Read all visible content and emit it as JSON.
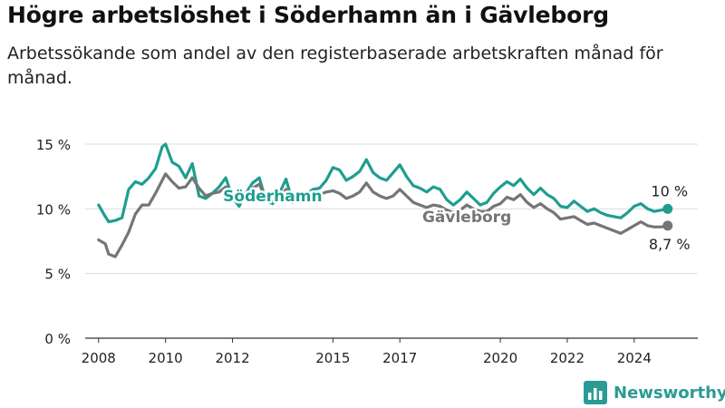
{
  "title": "Högre arbetslöshet i Söderhamn än i Gävleborg",
  "subtitle": "Arbetssökande som andel av den registerbaserade arbetskraften månad för månad.",
  "brand": {
    "name": "Newsworthy",
    "icon": "bar-chart-logo-icon"
  },
  "colors": {
    "soderhamn": "#1e9e8f",
    "gavleborg": "#757575",
    "grid": "#dddddd",
    "text": "#222222"
  },
  "chart_data": {
    "type": "line",
    "title": "Högre arbetslöshet i Söderhamn än i Gävleborg",
    "subtitle": "Arbetssökande som andel av den registerbaserade arbetskraften månad för månad.",
    "xlim": [
      2007.6,
      2025.9
    ],
    "ylim": [
      0,
      15
    ],
    "y_ticks": [
      0,
      5,
      10,
      15
    ],
    "y_tick_labels": [
      "0 %",
      "5 %",
      "10 %",
      "15 %"
    ],
    "x_ticks": [
      2008,
      2010,
      2012,
      2015,
      2017,
      2020,
      2022,
      2024
    ],
    "x_tick_labels": [
      "2008",
      "2010",
      "2012",
      "2015",
      "2017",
      "2020",
      "2022",
      "2024"
    ],
    "grid": "horizontal",
    "legend": "inline labels",
    "series": [
      {
        "name": "Söderhamn",
        "color": "#1e9e8f",
        "end_label": "10 %",
        "x": [
          2008.0,
          2008.2,
          2008.3,
          2008.5,
          2008.7,
          2008.9,
          2009.1,
          2009.3,
          2009.5,
          2009.7,
          2009.9,
          2010.0,
          2010.2,
          2010.4,
          2010.6,
          2010.8,
          2011.0,
          2011.2,
          2011.4,
          2011.6,
          2011.8,
          2012.0,
          2012.2,
          2012.4,
          2012.6,
          2012.8,
          2013.0,
          2013.2,
          2013.4,
          2013.6,
          2013.8,
          2014.0,
          2014.2,
          2014.4,
          2014.6,
          2014.8,
          2015.0,
          2015.2,
          2015.4,
          2015.6,
          2015.8,
          2016.0,
          2016.2,
          2016.4,
          2016.6,
          2016.8,
          2017.0,
          2017.2,
          2017.4,
          2017.6,
          2017.8,
          2018.0,
          2018.2,
          2018.4,
          2018.6,
          2018.8,
          2019.0,
          2019.2,
          2019.4,
          2019.6,
          2019.8,
          2020.0,
          2020.2,
          2020.4,
          2020.6,
          2020.8,
          2021.0,
          2021.2,
          2021.4,
          2021.6,
          2021.8,
          2022.0,
          2022.2,
          2022.4,
          2022.6,
          2022.8,
          2023.0,
          2023.2,
          2023.4,
          2023.6,
          2023.8,
          2024.0,
          2024.2,
          2024.4,
          2024.6,
          2024.8,
          2025.0
        ],
        "y": [
          10.3,
          9.4,
          9.0,
          9.1,
          9.3,
          11.5,
          12.1,
          11.9,
          12.4,
          13.1,
          14.8,
          15.0,
          13.6,
          13.3,
          12.4,
          13.5,
          11.0,
          10.8,
          11.2,
          11.7,
          12.4,
          10.9,
          10.2,
          11.2,
          12.0,
          12.4,
          10.6,
          10.4,
          11.2,
          12.3,
          10.5,
          11.3,
          11.1,
          11.5,
          11.6,
          12.2,
          13.2,
          13.0,
          12.2,
          12.5,
          12.9,
          13.8,
          12.8,
          12.4,
          12.2,
          12.8,
          13.4,
          12.5,
          11.8,
          11.6,
          11.3,
          11.7,
          11.5,
          10.7,
          10.3,
          10.7,
          11.3,
          10.8,
          10.3,
          10.5,
          11.2,
          11.7,
          12.1,
          11.8,
          12.3,
          11.6,
          11.1,
          11.6,
          11.1,
          10.8,
          10.2,
          10.1,
          10.6,
          10.2,
          9.8,
          10.0,
          9.7,
          9.5,
          9.4,
          9.3,
          9.7,
          10.2,
          10.4,
          10.0,
          9.8,
          9.9,
          10.0
        ]
      },
      {
        "name": "Gävleborg",
        "color": "#757575",
        "end_label": "8,7 %",
        "x": [
          2008.0,
          2008.2,
          2008.3,
          2008.5,
          2008.7,
          2008.9,
          2009.1,
          2009.3,
          2009.5,
          2009.7,
          2009.9,
          2010.0,
          2010.2,
          2010.4,
          2010.6,
          2010.8,
          2011.0,
          2011.2,
          2011.4,
          2011.6,
          2011.8,
          2012.0,
          2012.2,
          2012.4,
          2012.6,
          2012.8,
          2013.0,
          2013.2,
          2013.4,
          2013.6,
          2013.8,
          2014.0,
          2014.2,
          2014.4,
          2014.6,
          2014.8,
          2015.0,
          2015.2,
          2015.4,
          2015.6,
          2015.8,
          2016.0,
          2016.2,
          2016.4,
          2016.6,
          2016.8,
          2017.0,
          2017.2,
          2017.4,
          2017.6,
          2017.8,
          2018.0,
          2018.2,
          2018.4,
          2018.6,
          2018.8,
          2019.0,
          2019.2,
          2019.4,
          2019.6,
          2019.8,
          2020.0,
          2020.2,
          2020.4,
          2020.6,
          2020.8,
          2021.0,
          2021.2,
          2021.4,
          2021.6,
          2021.8,
          2022.0,
          2022.2,
          2022.4,
          2022.6,
          2022.8,
          2023.0,
          2023.2,
          2023.4,
          2023.6,
          2023.8,
          2024.0,
          2024.2,
          2024.4,
          2024.6,
          2024.8,
          2025.0
        ],
        "y": [
          7.6,
          7.3,
          6.5,
          6.3,
          7.2,
          8.2,
          9.6,
          10.3,
          10.3,
          11.2,
          12.2,
          12.7,
          12.1,
          11.6,
          11.7,
          12.4,
          11.6,
          11.0,
          11.2,
          11.3,
          11.7,
          11.3,
          10.6,
          11.0,
          11.6,
          11.9,
          10.8,
          10.6,
          10.9,
          11.5,
          10.5,
          10.9,
          10.8,
          11.0,
          11.1,
          11.3,
          11.4,
          11.2,
          10.8,
          11.0,
          11.3,
          12.0,
          11.3,
          11.0,
          10.8,
          11.0,
          11.5,
          11.0,
          10.5,
          10.3,
          10.1,
          10.3,
          10.2,
          9.9,
          9.7,
          9.9,
          10.3,
          10.0,
          9.8,
          9.8,
          10.2,
          10.4,
          10.9,
          10.7,
          11.1,
          10.5,
          10.1,
          10.4,
          10.0,
          9.7,
          9.2,
          9.3,
          9.4,
          9.1,
          8.8,
          8.9,
          8.7,
          8.5,
          8.3,
          8.1,
          8.4,
          8.7,
          9.0,
          8.7,
          8.6,
          8.6,
          8.7
        ]
      }
    ]
  },
  "annotations": {
    "soderhamn_label": "Söderhamn",
    "gavleborg_label": "Gävleborg"
  }
}
